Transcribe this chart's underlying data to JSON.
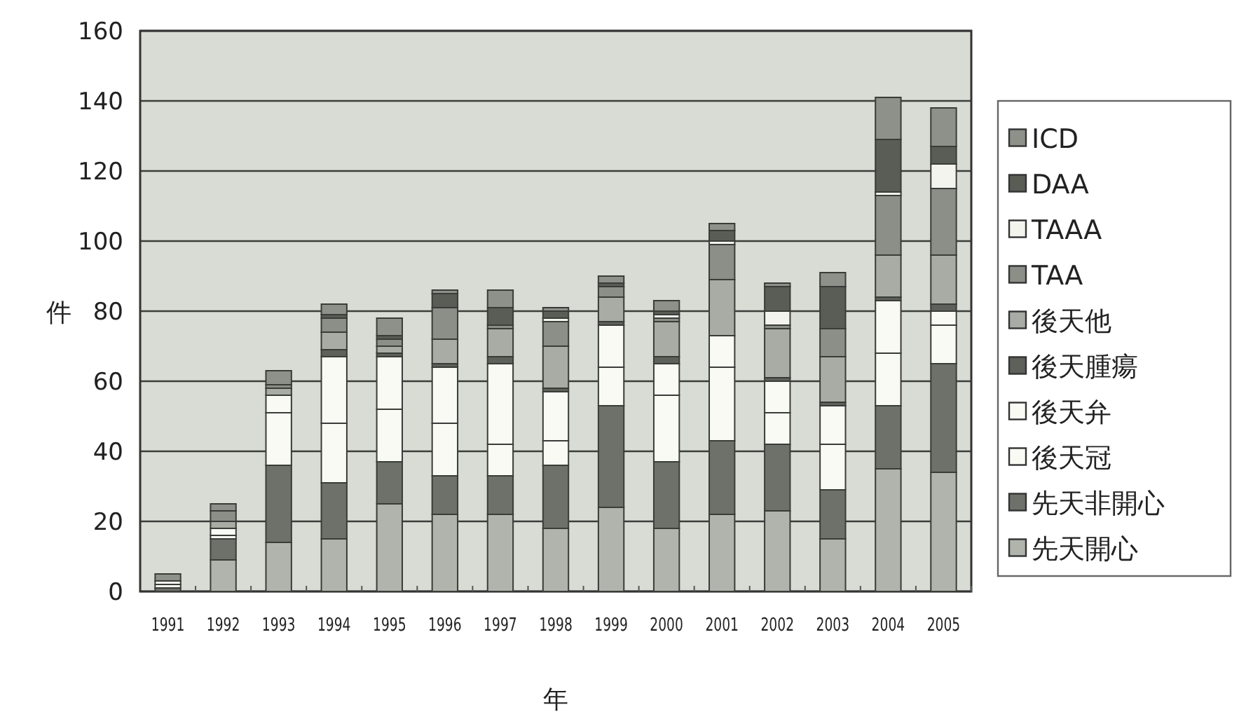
{
  "chart_data": {
    "type": "bar",
    "stacked": true,
    "xlabel": "年",
    "ylabel": "件",
    "categories": [
      "1991",
      "1992",
      "1993",
      "1994",
      "1995",
      "1996",
      "1997",
      "1998",
      "1999",
      "2000",
      "2001",
      "2002",
      "2003",
      "2004",
      "2005"
    ],
    "ylim": [
      0,
      160
    ],
    "yticks": [
      0,
      20,
      40,
      60,
      80,
      100,
      120,
      140,
      160
    ],
    "grid": "y",
    "legend": "right",
    "series": [
      {
        "name": "先天開心",
        "color": "#b0b4ac",
        "values": [
          0,
          9,
          14,
          15,
          25,
          22,
          22,
          18,
          24,
          18,
          22,
          23,
          15,
          35,
          34
        ]
      },
      {
        "name": "先天非開心",
        "color": "#6e706a",
        "values": [
          1,
          6,
          22,
          16,
          12,
          11,
          11,
          18,
          29,
          19,
          21,
          19,
          14,
          18,
          31
        ]
      },
      {
        "name": "後天冠",
        "color": "#fafaf4",
        "values": [
          1,
          1,
          15,
          17,
          15,
          15,
          9,
          7,
          11,
          19,
          21,
          9,
          13,
          15,
          11
        ]
      },
      {
        "name": "後天弁",
        "color": "#fafaf4",
        "values": [
          1,
          2,
          5,
          19,
          15,
          16,
          23,
          14,
          12,
          9,
          9,
          9,
          11,
          15,
          4
        ]
      },
      {
        "name": "後天腫瘍",
        "color": "#5e605a",
        "values": [
          0,
          0,
          0,
          2,
          1,
          1,
          2,
          1,
          1,
          2,
          0,
          1,
          1,
          1,
          2
        ]
      },
      {
        "name": "後天他",
        "color": "#a8aca4",
        "values": [
          0,
          2,
          2,
          5,
          2,
          7,
          8,
          12,
          7,
          10,
          16,
          14,
          13,
          12,
          14
        ]
      },
      {
        "name": "TAA",
        "color": "#8c8f88",
        "values": [
          0,
          3,
          1,
          4,
          2,
          9,
          1,
          7,
          3,
          1,
          10,
          1,
          8,
          17,
          19
        ]
      },
      {
        "name": "TAAA",
        "color": "#f4f4ee",
        "values": [
          0,
          0,
          0,
          0,
          0,
          0,
          0,
          1,
          0,
          1,
          1,
          4,
          0,
          1,
          7
        ]
      },
      {
        "name": "DAA",
        "color": "#5a5c56",
        "values": [
          0,
          0,
          0,
          1,
          1,
          4,
          5,
          2,
          1,
          1,
          3,
          7,
          12,
          15,
          5
        ]
      },
      {
        "name": "ICD",
        "color": "#8e918a",
        "values": [
          2,
          2,
          4,
          3,
          5,
          1,
          5,
          1,
          2,
          3,
          2,
          1,
          4,
          12,
          11
        ]
      }
    ]
  }
}
